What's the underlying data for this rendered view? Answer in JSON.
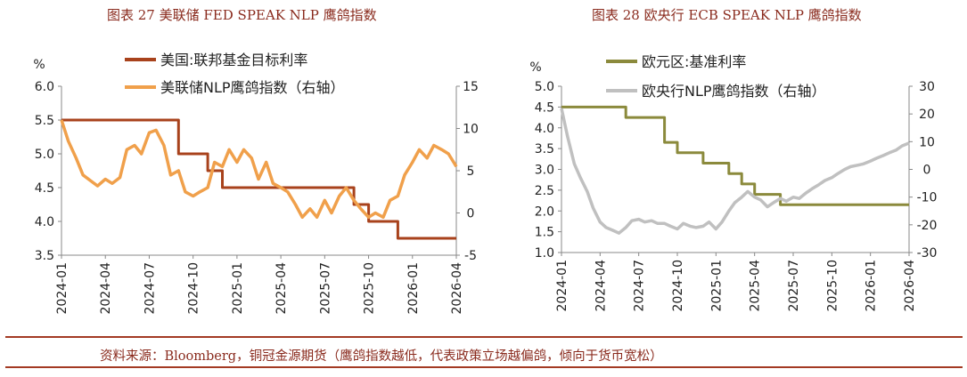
{
  "titles": {
    "left": "图表 27 美联储 FED SPEAK NLP 鹰鸽指数",
    "right": "图表 28 欧央行 ECB SPEAK NLP 鹰鸽指数"
  },
  "source": "资料来源：Bloomberg，铜冠金源期货（鹰鸽指数越低，代表政策立场越偏鸽，倾向于货币宽松）",
  "chart_data": [
    {
      "type": "line",
      "title": "图表 27 美联储 FED SPEAK NLP 鹰鸽指数",
      "x_ticks": [
        "2024-01",
        "2024-04",
        "2024-07",
        "2024-10",
        "2025-01",
        "2025-04",
        "2025-07",
        "2025-10",
        "2026-01",
        "2026-04"
      ],
      "x_range": [
        "2024-01",
        "2026-04"
      ],
      "y_left": {
        "label": "%",
        "range": [
          3.5,
          6.0
        ],
        "ticks": [
          "3.5",
          "4.0",
          "4.5",
          "5.0",
          "5.5",
          "6.0"
        ]
      },
      "y_right": {
        "range": [
          -5,
          15
        ],
        "ticks": [
          "-5",
          "0",
          "5",
          "10",
          "15"
        ]
      },
      "grid": false,
      "legend_position": "top",
      "series": [
        {
          "name": "美国:联邦基金目标利率",
          "axis": "left",
          "color": "#a8421c",
          "step": true,
          "points": [
            [
              "2024-01",
              5.5
            ],
            [
              "2024-09",
              5.0
            ],
            [
              "2024-11",
              4.75
            ],
            [
              "2024-12",
              4.5
            ],
            [
              "2025-09",
              4.25
            ],
            [
              "2025-10",
              4.0
            ],
            [
              "2025-12",
              3.75
            ],
            [
              "2026-04",
              3.75
            ]
          ]
        },
        {
          "name": "美联储NLP鹰鸽指数（右轴）",
          "axis": "right",
          "color": "#f0a04b",
          "points": [
            [
              "2024-01",
              11.0
            ],
            [
              "2024-01-15",
              8.5
            ],
            [
              "2024-02",
              6.5
            ],
            [
              "2024-02-15",
              4.5
            ],
            [
              "2024-03",
              3.8
            ],
            [
              "2024-03-15",
              3.2
            ],
            [
              "2024-04",
              4.0
            ],
            [
              "2024-04-15",
              3.5
            ],
            [
              "2024-05",
              4.2
            ],
            [
              "2024-05-15",
              7.5
            ],
            [
              "2024-06",
              8.0
            ],
            [
              "2024-06-15",
              7.0
            ],
            [
              "2024-07",
              9.5
            ],
            [
              "2024-07-15",
              9.8
            ],
            [
              "2024-08",
              8.0
            ],
            [
              "2024-08-15",
              4.5
            ],
            [
              "2024-09",
              5.0
            ],
            [
              "2024-09-15",
              2.5
            ],
            [
              "2024-10",
              2.0
            ],
            [
              "2024-10-15",
              2.5
            ],
            [
              "2024-11",
              3.0
            ],
            [
              "2024-11-15",
              6.0
            ],
            [
              "2024-12",
              5.5
            ],
            [
              "2024-12-15",
              7.5
            ],
            [
              "2025-01",
              6.0
            ],
            [
              "2025-01-15",
              7.5
            ],
            [
              "2025-02",
              6.5
            ],
            [
              "2025-02-15",
              4.0
            ],
            [
              "2025-03",
              6.0
            ],
            [
              "2025-03-15",
              3.5
            ],
            [
              "2025-04",
              3.0
            ],
            [
              "2025-04-15",
              2.5
            ],
            [
              "2025-05",
              1.0
            ],
            [
              "2025-05-15",
              -0.5
            ],
            [
              "2025-06",
              0.5
            ],
            [
              "2025-06-15",
              -0.5
            ],
            [
              "2025-07",
              1.5
            ],
            [
              "2025-07-15",
              0.0
            ],
            [
              "2025-08",
              2.0
            ],
            [
              "2025-08-15",
              3.0
            ],
            [
              "2025-09",
              1.5
            ],
            [
              "2025-09-15",
              0.5
            ],
            [
              "2025-10",
              -0.5
            ],
            [
              "2025-10-15",
              0.0
            ],
            [
              "2025-11",
              -0.5
            ],
            [
              "2025-11-15",
              1.5
            ],
            [
              "2025-12",
              2.0
            ],
            [
              "2025-12-15",
              4.5
            ],
            [
              "2026-01",
              6.0
            ],
            [
              "2026-01-15",
              7.5
            ],
            [
              "2026-02",
              6.5
            ],
            [
              "2026-02-15",
              8.0
            ],
            [
              "2026-03",
              7.5
            ],
            [
              "2026-03-15",
              7.0
            ],
            [
              "2026-04",
              5.5
            ]
          ]
        }
      ]
    },
    {
      "type": "line",
      "title": "图表 28 欧央行 ECB SPEAK NLP 鹰鸽指数",
      "x_ticks": [
        "2024-01",
        "2024-04",
        "2024-07",
        "2024-10",
        "2025-01",
        "2025-04",
        "2025-07",
        "2025-10",
        "2026-01",
        "2026-04"
      ],
      "x_range": [
        "2024-01",
        "2026-04"
      ],
      "y_left": {
        "label": "%",
        "range": [
          1.0,
          5.0
        ],
        "ticks": [
          "1.0",
          "1.5",
          "2.0",
          "2.5",
          "3.0",
          "3.5",
          "4.0",
          "4.5",
          "5.0"
        ]
      },
      "y_right": {
        "range": [
          -30,
          30
        ],
        "ticks": [
          "-30",
          "-20",
          "-10",
          "0",
          "10",
          "20",
          "30"
        ]
      },
      "grid": false,
      "legend_position": "top",
      "series": [
        {
          "name": "欧元区:基准利率",
          "axis": "left",
          "color": "#8b8a3c",
          "step": true,
          "points": [
            [
              "2024-01",
              4.5
            ],
            [
              "2024-06",
              4.25
            ],
            [
              "2024-09",
              3.65
            ],
            [
              "2024-10",
              3.4
            ],
            [
              "2024-12",
              3.15
            ],
            [
              "2025-02",
              2.9
            ],
            [
              "2025-03",
              2.65
            ],
            [
              "2025-04",
              2.4
            ],
            [
              "2025-06",
              2.15
            ],
            [
              "2026-04",
              2.15
            ]
          ]
        },
        {
          "name": "欧央行NLP鹰鸽指数（右轴）",
          "axis": "right",
          "color": "#c0c0c0",
          "points": [
            [
              "2024-01",
              22.0
            ],
            [
              "2024-01-15",
              12.0
            ],
            [
              "2024-02",
              2.0
            ],
            [
              "2024-02-15",
              -3.0
            ],
            [
              "2024-03",
              -8.0
            ],
            [
              "2024-03-15",
              -14.0
            ],
            [
              "2024-04",
              -19.0
            ],
            [
              "2024-04-15",
              -21.0
            ],
            [
              "2024-05",
              -22.0
            ],
            [
              "2024-05-15",
              -23.0
            ],
            [
              "2024-06",
              -21.0
            ],
            [
              "2024-06-15",
              -18.5
            ],
            [
              "2024-07",
              -18.0
            ],
            [
              "2024-07-15",
              -19.0
            ],
            [
              "2024-08",
              -18.5
            ],
            [
              "2024-08-15",
              -19.5
            ],
            [
              "2024-09",
              -19.5
            ],
            [
              "2024-09-15",
              -20.5
            ],
            [
              "2024-10",
              -21.5
            ],
            [
              "2024-10-15",
              -19.5
            ],
            [
              "2024-11",
              -20.5
            ],
            [
              "2024-11-15",
              -21.0
            ],
            [
              "2024-12",
              -20.5
            ],
            [
              "2024-12-15",
              -19.0
            ],
            [
              "2025-01",
              -21.5
            ],
            [
              "2025-01-15",
              -19.0
            ],
            [
              "2025-02",
              -15.0
            ],
            [
              "2025-02-15",
              -12.0
            ],
            [
              "2025-03",
              -10.0
            ],
            [
              "2025-03-15",
              -8.0
            ],
            [
              "2025-04",
              -10.0
            ],
            [
              "2025-04-15",
              -11.0
            ],
            [
              "2025-05",
              -13.5
            ],
            [
              "2025-05-15",
              -12.0
            ],
            [
              "2025-06",
              -10.5
            ],
            [
              "2025-06-15",
              -11.5
            ],
            [
              "2025-07",
              -10.0
            ],
            [
              "2025-07-15",
              -10.5
            ],
            [
              "2025-08",
              -8.5
            ],
            [
              "2025-08-15",
              -7.0
            ],
            [
              "2025-09",
              -5.5
            ],
            [
              "2025-09-15",
              -4.0
            ],
            [
              "2025-10",
              -3.0
            ],
            [
              "2025-10-15",
              -1.5
            ],
            [
              "2025-11",
              0.0
            ],
            [
              "2025-11-15",
              1.0
            ],
            [
              "2025-12",
              1.5
            ],
            [
              "2025-12-15",
              2.0
            ],
            [
              "2026-01",
              3.0
            ],
            [
              "2026-01-15",
              4.0
            ],
            [
              "2026-02",
              5.0
            ],
            [
              "2026-02-15",
              6.0
            ],
            [
              "2026-03",
              7.0
            ],
            [
              "2026-03-15",
              8.5
            ],
            [
              "2026-04",
              9.5
            ]
          ]
        }
      ]
    }
  ]
}
